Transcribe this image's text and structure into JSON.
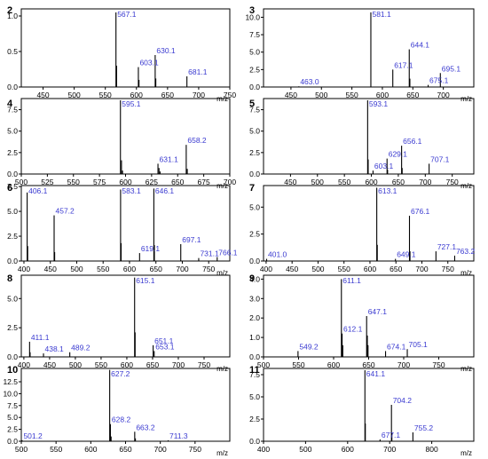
{
  "chart_data": [
    {
      "type": "bar",
      "panel_label": "2",
      "xlabel": "m/z",
      "xlim": [
        415,
        750
      ],
      "ylim": [
        0,
        1.1
      ],
      "x_ticks": [
        450,
        500,
        550,
        600,
        650,
        700,
        750
      ],
      "y_ticks": [
        0.0,
        0.5,
        1.0
      ],
      "x_tick_labels": [
        "450",
        "500",
        "550",
        "600",
        "650",
        "700",
        "750"
      ],
      "y_tick_labels": [
        "0.0",
        "0.5",
        "1.0"
      ],
      "series": [
        {
          "x": [
            567.1,
            568.1,
            603.1,
            604.1,
            630.1,
            631.1,
            681.1
          ],
          "values": [
            1.05,
            0.3,
            0.28,
            0.1,
            0.45,
            0.12,
            0.15
          ]
        }
      ],
      "annotations": [
        {
          "x": 567.1,
          "y": 1.05,
          "text": "567.1"
        },
        {
          "x": 603.1,
          "y": 0.28,
          "text": "603.1"
        },
        {
          "x": 630.1,
          "y": 0.45,
          "text": "630.1"
        },
        {
          "x": 681.1,
          "y": 0.15,
          "text": "681.1"
        }
      ]
    },
    {
      "type": "bar",
      "panel_label": "3",
      "xlabel": "m/z",
      "xlim": [
        405,
        750
      ],
      "ylim": [
        0,
        11.2
      ],
      "x_ticks": [
        450,
        500,
        550,
        600,
        650,
        700
      ],
      "y_ticks": [
        0.0,
        2.5,
        5.0,
        7.5,
        10.0
      ],
      "x_tick_labels": [
        "450",
        "500",
        "550",
        "600",
        "650",
        "700"
      ],
      "y_tick_labels": [
        "0.0",
        "2.5",
        "5.0",
        "7.5",
        "10.0"
      ],
      "series": [
        {
          "x": [
            463.0,
            581.1,
            617.1,
            644.1,
            645.1,
            675.1,
            695.1
          ],
          "values": [
            0.1,
            10.7,
            2.5,
            5.4,
            1.2,
            0.3,
            2.0
          ]
        }
      ],
      "annotations": [
        {
          "x": 581.1,
          "y": 10.7,
          "text": "581.1"
        },
        {
          "x": 617.1,
          "y": 2.5,
          "text": "617.1"
        },
        {
          "x": 644.1,
          "y": 5.4,
          "text": "644.1"
        },
        {
          "x": 695.1,
          "y": 2.0,
          "text": "695.1"
        },
        {
          "x": 675.1,
          "y": 0.3,
          "text": "675.1"
        },
        {
          "x": 463.0,
          "y": 0.1,
          "text": "463.0"
        }
      ]
    },
    {
      "type": "bar",
      "panel_label": "4",
      "xlabel": "m/z",
      "xlim": [
        500,
        700
      ],
      "ylim": [
        0,
        8.8
      ],
      "x_ticks": [
        500,
        525,
        550,
        575,
        600,
        625,
        650,
        675,
        700
      ],
      "y_ticks": [
        0.0,
        2.5,
        5.0,
        7.5
      ],
      "x_tick_labels": [
        "500",
        "525",
        "550",
        "575",
        "600",
        "625",
        "650",
        "675",
        "700"
      ],
      "y_tick_labels": [
        "0.0",
        "2.5",
        "5.0",
        "7.5"
      ],
      "series": [
        {
          "x": [
            595.1,
            596.1,
            597.1,
            631.1,
            632.1,
            633.1,
            658.2,
            659.2
          ],
          "values": [
            8.6,
            1.6,
            0.4,
            1.2,
            0.7,
            0.3,
            3.4,
            0.6
          ]
        }
      ],
      "annotations": [
        {
          "x": 595.1,
          "y": 8.6,
          "text": "595.1"
        },
        {
          "x": 631.1,
          "y": 1.2,
          "text": "631.1"
        },
        {
          "x": 658.2,
          "y": 3.4,
          "text": "658.2"
        }
      ]
    },
    {
      "type": "bar",
      "panel_label": "5",
      "xlabel": "m/z",
      "xlim": [
        400,
        790
      ],
      "ylim": [
        0,
        8.8
      ],
      "x_ticks": [
        450,
        500,
        550,
        600,
        650,
        700,
        750
      ],
      "y_ticks": [
        0.0,
        2.5,
        5.0,
        7.5
      ],
      "x_tick_labels": [
        "450",
        "500",
        "550",
        "600",
        "650",
        "700",
        "750"
      ],
      "y_tick_labels": [
        "0.0",
        "2.5",
        "5.0",
        "7.5"
      ],
      "series": [
        {
          "x": [
            593.1,
            594.1,
            603.1,
            629.1,
            630.1,
            656.1,
            657.1,
            707.1
          ],
          "values": [
            8.6,
            1.7,
            0.4,
            1.8,
            0.5,
            3.3,
            0.7,
            1.2
          ]
        }
      ],
      "annotations": [
        {
          "x": 593.1,
          "y": 8.6,
          "text": "593.1"
        },
        {
          "x": 656.1,
          "y": 3.3,
          "text": "656.1"
        },
        {
          "x": 629.1,
          "y": 1.8,
          "text": "629.1"
        },
        {
          "x": 707.1,
          "y": 1.2,
          "text": "707.1"
        },
        {
          "x": 603.1,
          "y": 0.4,
          "text": "603.1"
        }
      ]
    },
    {
      "type": "bar",
      "panel_label": "6",
      "xlabel": "m/z",
      "xlim": [
        395,
        790
      ],
      "ylim": [
        0,
        7.6
      ],
      "x_ticks": [
        400,
        450,
        500,
        550,
        600,
        650,
        700,
        750
      ],
      "y_ticks": [
        0.0,
        2.5,
        5.0,
        7.5
      ],
      "x_tick_labels": [
        "400",
        "450",
        "500",
        "550",
        "600",
        "650",
        "700",
        "750"
      ],
      "y_tick_labels": [
        "0.0",
        "2.5",
        "5.0",
        "7.5"
      ],
      "series": [
        {
          "x": [
            406.1,
            407.1,
            457.2,
            458.2,
            583.1,
            584.1,
            619.1,
            646.1,
            647.1,
            697.1,
            731.1,
            766.1
          ],
          "values": [
            6.9,
            1.5,
            4.6,
            0.9,
            7.2,
            1.8,
            0.8,
            7.3,
            1.6,
            1.7,
            0.3,
            0.4
          ]
        }
      ],
      "annotations": [
        {
          "x": 406.1,
          "y": 6.9,
          "text": "406.1"
        },
        {
          "x": 457.2,
          "y": 4.6,
          "text": "457.2"
        },
        {
          "x": 583.1,
          "y": 7.2,
          "text": "583.1"
        },
        {
          "x": 646.1,
          "y": 7.3,
          "text": "646.1"
        },
        {
          "x": 619.1,
          "y": 0.8,
          "text": "619.1"
        },
        {
          "x": 697.1,
          "y": 1.7,
          "text": "697.1"
        },
        {
          "x": 731.1,
          "y": 0.3,
          "text": "731.1"
        },
        {
          "x": 766.1,
          "y": 0.4,
          "text": "766.1"
        }
      ]
    },
    {
      "type": "bar",
      "panel_label": "7",
      "xlabel": "m/z",
      "xlim": [
        395,
        800
      ],
      "ylim": [
        0,
        7.0
      ],
      "x_ticks": [
        400,
        450,
        500,
        550,
        600,
        650,
        700,
        750
      ],
      "y_ticks": [
        0.0,
        2.5,
        5.0
      ],
      "x_tick_labels": [
        "400",
        "450",
        "500",
        "550",
        "600",
        "650",
        "700",
        "750"
      ],
      "y_tick_labels": [
        "0.0",
        "2.5",
        "5.0"
      ],
      "series": [
        {
          "x": [
            401.0,
            613.1,
            614.1,
            649.1,
            676.1,
            677.1,
            727.1,
            763.2
          ],
          "values": [
            0.2,
            6.8,
            1.5,
            0.2,
            4.2,
            0.9,
            0.9,
            0.5
          ]
        }
      ],
      "annotations": [
        {
          "x": 613.1,
          "y": 6.8,
          "text": "613.1"
        },
        {
          "x": 676.1,
          "y": 4.2,
          "text": "676.1"
        },
        {
          "x": 727.1,
          "y": 0.9,
          "text": "727.1"
        },
        {
          "x": 763.2,
          "y": 0.5,
          "text": "763.2"
        },
        {
          "x": 649.1,
          "y": 0.2,
          "text": "649.1"
        },
        {
          "x": 401.0,
          "y": 0.2,
          "text": "401.0"
        }
      ]
    },
    {
      "type": "bar",
      "panel_label": "8",
      "xlabel": "m/z",
      "xlim": [
        395,
        800
      ],
      "ylim": [
        0,
        7.0
      ],
      "x_ticks": [
        400,
        450,
        500,
        550,
        600,
        650,
        700,
        750
      ],
      "y_ticks": [
        0.0,
        2.5,
        5.0
      ],
      "x_tick_labels": [
        "400",
        "450",
        "500",
        "550",
        "600",
        "650",
        "700",
        "750"
      ],
      "y_tick_labels": [
        "0.0",
        "2.5",
        "5.0"
      ],
      "series": [
        {
          "x": [
            411.1,
            412.1,
            438.1,
            489.2,
            615.1,
            616.1,
            651.1,
            653.1
          ],
          "values": [
            1.3,
            0.4,
            0.3,
            0.4,
            6.8,
            2.1,
            1.0,
            0.5
          ]
        }
      ],
      "annotations": [
        {
          "x": 615.1,
          "y": 6.8,
          "text": "615.1"
        },
        {
          "x": 411.1,
          "y": 1.3,
          "text": "411.1"
        },
        {
          "x": 438.1,
          "y": 0.3,
          "text": "438.1"
        },
        {
          "x": 489.2,
          "y": 0.4,
          "text": "489.2"
        },
        {
          "x": 651.1,
          "y": 1.0,
          "text": "651.1"
        },
        {
          "x": 653.1,
          "y": 0.5,
          "text": "653.1"
        }
      ]
    },
    {
      "type": "bar",
      "panel_label": "9",
      "xlabel": "m/z",
      "xlim": [
        500,
        800
      ],
      "ylim": [
        0,
        4.2
      ],
      "x_ticks": [
        500,
        550,
        600,
        650,
        700,
        750
      ],
      "y_ticks": [
        0.0,
        1.0,
        2.0,
        3.0,
        4.0
      ],
      "x_tick_labels": [
        "500",
        "550",
        "600",
        "650",
        "700",
        "750"
      ],
      "y_tick_labels": [
        "0.0",
        "1.0",
        "2.0",
        "3.0",
        "4.0"
      ],
      "series": [
        {
          "x": [
            549.2,
            611.1,
            612.1,
            613.1,
            647.1,
            648.1,
            649.1,
            674.1,
            705.1
          ],
          "values": [
            0.3,
            4.0,
            1.2,
            0.6,
            2.1,
            1.1,
            0.6,
            0.3,
            0.4
          ]
        }
      ],
      "annotations": [
        {
          "x": 611.1,
          "y": 4.0,
          "text": "611.1"
        },
        {
          "x": 612.1,
          "y": 1.2,
          "text": "612.1"
        },
        {
          "x": 647.1,
          "y": 2.1,
          "text": "647.1"
        },
        {
          "x": 549.2,
          "y": 0.3,
          "text": "549.2"
        },
        {
          "x": 674.1,
          "y": 0.3,
          "text": "674.1"
        },
        {
          "x": 705.1,
          "y": 0.4,
          "text": "705.1"
        }
      ]
    },
    {
      "type": "bar",
      "panel_label": "10",
      "xlabel": "m/z",
      "xlim": [
        500,
        800
      ],
      "ylim": [
        0,
        15.3
      ],
      "x_ticks": [
        500,
        550,
        600,
        650,
        700,
        750
      ],
      "y_ticks": [
        0.0,
        2.5,
        5.0,
        7.5,
        10.0,
        12.5
      ],
      "x_tick_labels": [
        "500",
        "550",
        "600",
        "650",
        "700",
        "750"
      ],
      "y_tick_labels": [
        "0.0",
        "2.5",
        "5.0",
        "7.5",
        "10.0",
        "12.5"
      ],
      "series": [
        {
          "x": [
            501.2,
            627.2,
            628.2,
            629.2,
            663.2,
            664.2,
            711.3
          ],
          "values": [
            0.2,
            15.0,
            3.6,
            1.0,
            2.0,
            0.6,
            0.2
          ]
        }
      ],
      "annotations": [
        {
          "x": 627.2,
          "y": 15.0,
          "text": "627.2"
        },
        {
          "x": 628.2,
          "y": 3.6,
          "text": "628.2"
        },
        {
          "x": 663.2,
          "y": 2.0,
          "text": "663.2"
        },
        {
          "x": 711.3,
          "y": 0.2,
          "text": "711.3"
        },
        {
          "x": 501.2,
          "y": 0.2,
          "text": "501.2"
        }
      ]
    },
    {
      "type": "bar",
      "panel_label": "11",
      "xlabel": "m/z",
      "xlim": [
        400,
        900
      ],
      "ylim": [
        0,
        8.2
      ],
      "x_ticks": [
        400,
        500,
        600,
        700,
        800
      ],
      "y_ticks": [
        0.0,
        2.5,
        5.0,
        7.5
      ],
      "x_tick_labels": [
        "400",
        "500",
        "600",
        "700",
        "800"
      ],
      "y_tick_labels": [
        "0.0",
        "2.5",
        "5.0",
        "7.5"
      ],
      "series": [
        {
          "x": [
            641.1,
            642.1,
            677.1,
            704.2,
            705.2,
            755.2
          ],
          "values": [
            8.0,
            2.0,
            0.2,
            4.1,
            0.9,
            1.0
          ]
        }
      ],
      "annotations": [
        {
          "x": 641.1,
          "y": 8.0,
          "text": "641.1"
        },
        {
          "x": 704.2,
          "y": 4.1,
          "text": "704.2"
        },
        {
          "x": 755.2,
          "y": 1.0,
          "text": "755.2"
        },
        {
          "x": 677.1,
          "y": 0.2,
          "text": "677.1"
        }
      ]
    }
  ]
}
